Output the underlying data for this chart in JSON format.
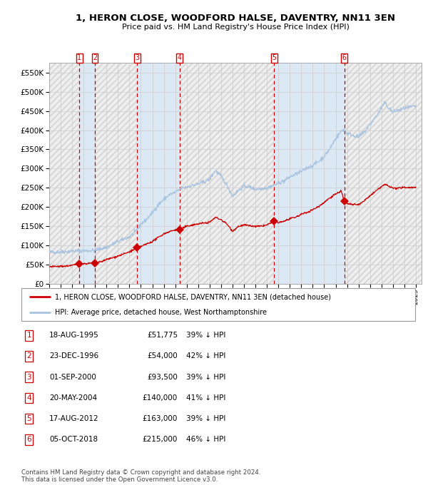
{
  "title": "1, HERON CLOSE, WOODFORD HALSE, DAVENTRY, NN11 3EN",
  "subtitle": "Price paid vs. HM Land Registry's House Price Index (HPI)",
  "xlim_start": 1993.0,
  "xlim_end": 2025.5,
  "ylim": [
    0,
    575000
  ],
  "yticks": [
    0,
    50000,
    100000,
    150000,
    200000,
    250000,
    300000,
    350000,
    400000,
    450000,
    500000,
    550000
  ],
  "sale_dates": [
    1995.63,
    1996.98,
    2000.67,
    2004.38,
    2012.63,
    2018.76
  ],
  "sale_prices": [
    51775,
    54000,
    93500,
    140000,
    163000,
    215000
  ],
  "sale_labels": [
    "1",
    "2",
    "3",
    "4",
    "5",
    "6"
  ],
  "sale_info": [
    {
      "num": "1",
      "date": "18-AUG-1995",
      "price": "£51,775",
      "hpi": "39% ↓ HPI"
    },
    {
      "num": "2",
      "date": "23-DEC-1996",
      "price": "£54,000",
      "hpi": "42% ↓ HPI"
    },
    {
      "num": "3",
      "date": "01-SEP-2000",
      "price": "£93,500",
      "hpi": "39% ↓ HPI"
    },
    {
      "num": "4",
      "date": "20-MAY-2004",
      "price": "£140,000",
      "hpi": "41% ↓ HPI"
    },
    {
      "num": "5",
      "date": "17-AUG-2012",
      "price": "£163,000",
      "hpi": "39% ↓ HPI"
    },
    {
      "num": "6",
      "date": "05-OCT-2018",
      "price": "£215,000",
      "hpi": "46% ↓ HPI"
    }
  ],
  "hpi_color": "#a8c4e0",
  "price_color": "#cc0000",
  "background_sale": "#dce9f5",
  "dashed_color": "#cc0000",
  "grid_color": "#cccccc",
  "legend_price_label": "1, HERON CLOSE, WOODFORD HALSE, DAVENTRY, NN11 3EN (detached house)",
  "legend_hpi_label": "HPI: Average price, detached house, West Northamptonshire",
  "footer": "Contains HM Land Registry data © Crown copyright and database right 2024.\nThis data is licensed under the Open Government Licence v3.0.",
  "xticks": [
    1993,
    1994,
    1995,
    1996,
    1997,
    1998,
    1999,
    2000,
    2001,
    2002,
    2003,
    2004,
    2005,
    2006,
    2007,
    2008,
    2009,
    2010,
    2011,
    2012,
    2013,
    2014,
    2015,
    2016,
    2017,
    2018,
    2019,
    2020,
    2021,
    2022,
    2023,
    2024,
    2025
  ]
}
